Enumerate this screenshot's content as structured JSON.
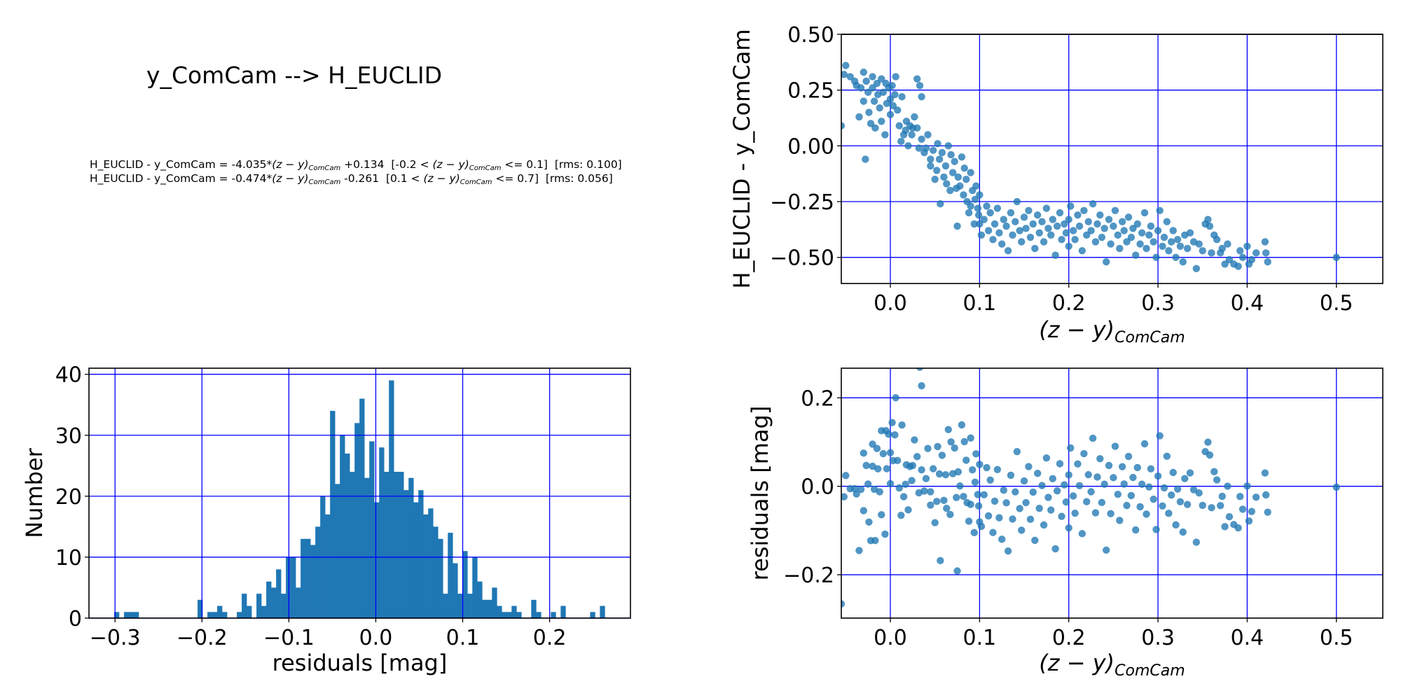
{
  "header": {
    "title": "y_ComCam --> H_EUCLID",
    "formulas": [
      [
        {
          "t": "H_EUCLID - y_ComCam = -4.035*"
        },
        {
          "t": "(z − y)",
          "i": true
        },
        {
          "t": "ComCam",
          "sub": true
        },
        {
          "t": " +0.134  [-0.2 < "
        },
        {
          "t": "(z − y)",
          "i": true
        },
        {
          "t": "ComCam",
          "sub": true
        },
        {
          "t": " <= 0.1]  [rms: 0.100]"
        }
      ],
      [
        {
          "t": "H_EUCLID - y_ComCam = -0.474*"
        },
        {
          "t": "(z − y)",
          "i": true
        },
        {
          "t": "ComCam",
          "sub": true
        },
        {
          "t": " -0.261  [0.1 < "
        },
        {
          "t": "(z − y)",
          "i": true
        },
        {
          "t": "ComCam",
          "sub": true
        },
        {
          "t": " <= 0.7]  [rms: 0.056]"
        }
      ]
    ]
  },
  "colors": {
    "points": "#1f77b4",
    "bars": "#1f77b4",
    "grid": "#0000ff",
    "axes": "#000000"
  },
  "chart_data": [
    {
      "id": "color-term",
      "type": "scatter",
      "xlabel": {
        "main": "(z − y)",
        "sub": "ComCam"
      },
      "ylabel": "H_EUCLID - y_ComCam",
      "xlim": [
        -0.055,
        0.552
      ],
      "ylim": [
        -0.617,
        0.5
      ],
      "xticks": [
        0.0,
        0.1,
        0.2,
        0.3,
        0.4,
        0.5
      ],
      "xticklabels": [
        "0.0",
        "0.1",
        "0.2",
        "0.3",
        "0.4",
        "0.5"
      ],
      "yticks": [
        -0.5,
        -0.25,
        0.0,
        0.25,
        0.5
      ],
      "yticklabels": [
        "−0.50",
        "−0.25",
        "0.00",
        "0.25",
        "0.50"
      ],
      "grid": true,
      "points": [
        [
          -0.055,
          0.09
        ],
        [
          -0.05,
          0.36
        ],
        [
          -0.052,
          0.32
        ],
        [
          -0.045,
          0.31
        ],
        [
          -0.04,
          0.29
        ],
        [
          -0.038,
          0.27
        ],
        [
          -0.035,
          0.13
        ],
        [
          -0.033,
          0.26
        ],
        [
          -0.03,
          0.33
        ],
        [
          -0.03,
          0.2
        ],
        [
          -0.028,
          -0.06
        ],
        [
          -0.027,
          0.29
        ],
        [
          -0.025,
          0.24
        ],
        [
          -0.024,
          0.15
        ],
        [
          -0.022,
          0.1
        ],
        [
          -0.02,
          0.31
        ],
        [
          -0.02,
          0.26
        ],
        [
          -0.018,
          0.2
        ],
        [
          -0.017,
          0.08
        ],
        [
          -0.015,
          0.28
        ],
        [
          -0.014,
          0.23
        ],
        [
          -0.012,
          0.17
        ],
        [
          -0.01,
          0.3
        ],
        [
          -0.01,
          0.11
        ],
        [
          -0.008,
          0.24
        ],
        [
          -0.006,
          0.05
        ],
        [
          -0.005,
          0.28
        ],
        [
          -0.004,
          0.19
        ],
        [
          -0.002,
          0.26
        ],
        [
          0.0,
          0.21
        ],
        [
          0.0,
          0.14
        ],
        [
          0.002,
          0.27
        ],
        [
          0.003,
          0.18
        ],
        [
          0.005,
          0.23
        ],
        [
          0.006,
          0.31
        ],
        [
          0.008,
          0.16
        ],
        [
          0.01,
          0.09
        ],
        [
          0.012,
          0.02
        ],
        [
          0.013,
          0.22
        ],
        [
          0.015,
          0.05
        ],
        [
          0.017,
          0.07
        ],
        [
          0.018,
          0.11
        ],
        [
          0.02,
          0.0
        ],
        [
          0.022,
          0.09
        ],
        [
          0.024,
          0.05
        ],
        [
          0.025,
          0.08
        ],
        [
          0.027,
          0.13
        ],
        [
          0.03,
          0.3
        ],
        [
          0.03,
          0.08
        ],
        [
          0.032,
          -0.01
        ],
        [
          0.033,
          0.27
        ],
        [
          0.035,
          0.03
        ],
        [
          0.035,
          0.22
        ],
        [
          0.038,
          -0.03
        ],
        [
          0.04,
          -0.01
        ],
        [
          0.042,
          0.05
        ],
        [
          0.045,
          -0.09
        ],
        [
          0.045,
          -0.06
        ],
        [
          0.048,
          -0.02
        ],
        [
          0.05,
          -0.15
        ],
        [
          0.052,
          -0.11
        ],
        [
          0.053,
          0.01
        ],
        [
          0.055,
          -0.06
        ],
        [
          0.056,
          -0.26
        ],
        [
          0.058,
          -0.03
        ],
        [
          0.06,
          -0.14
        ],
        [
          0.062,
          -0.09
        ],
        [
          0.063,
          -0.17
        ],
        [
          0.065,
          0.0
        ],
        [
          0.067,
          -0.2
        ],
        [
          0.068,
          -0.04
        ],
        [
          0.07,
          -0.12
        ],
        [
          0.072,
          -0.07
        ],
        [
          0.074,
          -0.19
        ],
        [
          0.075,
          -0.36
        ],
        [
          0.076,
          -0.14
        ],
        [
          0.078,
          -0.18
        ],
        [
          0.08,
          -0.05
        ],
        [
          0.082,
          -0.22
        ],
        [
          0.083,
          -0.1
        ],
        [
          0.085,
          -0.15
        ],
        [
          0.086,
          -0.25
        ],
        [
          0.088,
          -0.3
        ],
        [
          0.09,
          -0.12
        ],
        [
          0.09,
          -0.27
        ],
        [
          0.092,
          -0.2
        ],
        [
          0.094,
          -0.35
        ],
        [
          0.095,
          -0.24
        ],
        [
          0.096,
          -0.18
        ],
        [
          0.098,
          -0.28
        ],
        [
          0.099,
          -0.31
        ],
        [
          0.1,
          -0.22
        ],
        [
          0.1,
          -0.35
        ],
        [
          0.102,
          -0.4
        ],
        [
          0.105,
          -0.33
        ],
        [
          0.108,
          -0.27
        ],
        [
          0.11,
          -0.38
        ],
        [
          0.112,
          -0.3
        ],
        [
          0.115,
          -0.42
        ],
        [
          0.117,
          -0.35
        ],
        [
          0.12,
          -0.28
        ],
        [
          0.122,
          -0.39
        ],
        [
          0.125,
          -0.44
        ],
        [
          0.127,
          -0.33
        ],
        [
          0.13,
          -0.36
        ],
        [
          0.132,
          -0.47
        ],
        [
          0.135,
          -0.3
        ],
        [
          0.137,
          -0.4
        ],
        [
          0.14,
          -0.34
        ],
        [
          0.142,
          -0.25
        ],
        [
          0.145,
          -0.38
        ],
        [
          0.147,
          -0.43
        ],
        [
          0.15,
          -0.32
        ],
        [
          0.152,
          -0.37
        ],
        [
          0.155,
          -0.29
        ],
        [
          0.157,
          -0.41
        ],
        [
          0.16,
          -0.35
        ],
        [
          0.162,
          -0.46
        ],
        [
          0.165,
          -0.31
        ],
        [
          0.167,
          -0.39
        ],
        [
          0.17,
          -0.34
        ],
        [
          0.172,
          -0.43
        ],
        [
          0.175,
          -0.28
        ],
        [
          0.177,
          -0.37
        ],
        [
          0.18,
          -0.4
        ],
        [
          0.182,
          -0.33
        ],
        [
          0.185,
          -0.49
        ],
        [
          0.187,
          -0.36
        ],
        [
          0.19,
          -0.3
        ],
        [
          0.192,
          -0.42
        ],
        [
          0.195,
          -0.35
        ],
        [
          0.197,
          -0.39
        ],
        [
          0.2,
          -0.33
        ],
        [
          0.2,
          -0.45
        ],
        [
          0.202,
          -0.27
        ],
        [
          0.205,
          -0.38
        ],
        [
          0.207,
          -0.42
        ],
        [
          0.21,
          -0.31
        ],
        [
          0.212,
          -0.36
        ],
        [
          0.215,
          -0.47
        ],
        [
          0.217,
          -0.29
        ],
        [
          0.22,
          -0.4
        ],
        [
          0.222,
          -0.34
        ],
        [
          0.225,
          -0.38
        ],
        [
          0.227,
          -0.26
        ],
        [
          0.23,
          -0.43
        ],
        [
          0.232,
          -0.35
        ],
        [
          0.235,
          -0.31
        ],
        [
          0.237,
          -0.41
        ],
        [
          0.24,
          -0.37
        ],
        [
          0.242,
          -0.52
        ],
        [
          0.245,
          -0.33
        ],
        [
          0.247,
          -0.44
        ],
        [
          0.25,
          -0.36
        ],
        [
          0.252,
          -0.29
        ],
        [
          0.255,
          -0.4
        ],
        [
          0.257,
          -0.46
        ],
        [
          0.26,
          -0.34
        ],
        [
          0.262,
          -0.38
        ],
        [
          0.265,
          -0.43
        ],
        [
          0.267,
          -0.32
        ],
        [
          0.27,
          -0.41
        ],
        [
          0.272,
          -0.37
        ],
        [
          0.275,
          -0.49
        ],
        [
          0.277,
          -0.35
        ],
        [
          0.28,
          -0.44
        ],
        [
          0.282,
          -0.39
        ],
        [
          0.285,
          -0.3
        ],
        [
          0.287,
          -0.46
        ],
        [
          0.29,
          -0.4
        ],
        [
          0.292,
          -0.36
        ],
        [
          0.295,
          -0.43
        ],
        [
          0.298,
          -0.5
        ],
        [
          0.3,
          -0.38
        ],
        [
          0.302,
          -0.29
        ],
        [
          0.305,
          -0.45
        ],
        [
          0.307,
          -0.41
        ],
        [
          0.31,
          -0.34
        ],
        [
          0.312,
          -0.47
        ],
        [
          0.315,
          -0.43
        ],
        [
          0.317,
          -0.38
        ],
        [
          0.32,
          -0.5
        ],
        [
          0.322,
          -0.42
        ],
        [
          0.325,
          -0.45
        ],
        [
          0.328,
          -0.52
        ],
        [
          0.33,
          -0.4
        ],
        [
          0.333,
          -0.46
        ],
        [
          0.336,
          -0.39
        ],
        [
          0.34,
          -0.43
        ],
        [
          0.343,
          -0.55
        ],
        [
          0.346,
          -0.44
        ],
        [
          0.35,
          -0.47
        ],
        [
          0.353,
          -0.35
        ],
        [
          0.356,
          -0.33
        ],
        [
          0.358,
          -0.36
        ],
        [
          0.36,
          -0.48
        ],
        [
          0.363,
          -0.4
        ],
        [
          0.366,
          -0.42
        ],
        [
          0.37,
          -0.48
        ],
        [
          0.372,
          -0.46
        ],
        [
          0.375,
          -0.53
        ],
        [
          0.378,
          -0.44
        ],
        [
          0.38,
          -0.51
        ],
        [
          0.385,
          -0.53
        ],
        [
          0.39,
          -0.54
        ],
        [
          0.392,
          -0.47
        ],
        [
          0.395,
          -0.5
        ],
        [
          0.4,
          -0.45
        ],
        [
          0.402,
          -0.53
        ],
        [
          0.405,
          -0.51
        ],
        [
          0.41,
          -0.48
        ],
        [
          0.42,
          -0.43
        ],
        [
          0.421,
          -0.48
        ],
        [
          0.423,
          -0.52
        ],
        [
          0.5,
          -0.5
        ]
      ]
    },
    {
      "id": "residual-hist",
      "type": "bar",
      "xlabel": "residuals [mag]",
      "ylabel": "Number",
      "xlim": [
        -0.33,
        0.293
      ],
      "ylim": [
        0,
        41
      ],
      "bin_start": -0.301,
      "bin_width": 0.005645,
      "counts": [
        1,
        0,
        1,
        1,
        1,
        0,
        0,
        0,
        0,
        0,
        0,
        0,
        0,
        0,
        0,
        0,
        0,
        3,
        0,
        1,
        1,
        2,
        1,
        0,
        0,
        1,
        4,
        2,
        0,
        4,
        2,
        6,
        5,
        8,
        4,
        10,
        10,
        5,
        13,
        13,
        12,
        15,
        20,
        17,
        34,
        22,
        30,
        27,
        24,
        32,
        36,
        23,
        29,
        19,
        28,
        24,
        39,
        24,
        24,
        21,
        23,
        19,
        21,
        17,
        18,
        15,
        13,
        4,
        14,
        9,
        4,
        11,
        4,
        10,
        6,
        3,
        3,
        5,
        2,
        1,
        1,
        2,
        1,
        0,
        0,
        3,
        1,
        0,
        0,
        1,
        0,
        2,
        0,
        0,
        0,
        0,
        0,
        1,
        0,
        2
      ],
      "xticks": [
        -0.3,
        -0.2,
        -0.1,
        0.0,
        0.1,
        0.2
      ],
      "xticklabels": [
        "−0.3",
        "−0.2",
        "−0.1",
        "0.0",
        "0.1",
        "0.2"
      ],
      "yticks": [
        0,
        10,
        20,
        30,
        40
      ],
      "yticklabels": [
        "0",
        "10",
        "20",
        "30",
        "40"
      ],
      "grid": true
    },
    {
      "id": "residual-scatter",
      "type": "scatter",
      "xlabel": {
        "main": "(z − y)",
        "sub": "ComCam"
      },
      "ylabel": "residuals [mag]",
      "xlim": [
        -0.055,
        0.552
      ],
      "ylim": [
        -0.298,
        0.267
      ],
      "xticks": [
        0.0,
        0.1,
        0.2,
        0.3,
        0.4,
        0.5
      ],
      "xticklabels": [
        "0.0",
        "0.1",
        "0.2",
        "0.3",
        "0.4",
        "0.5"
      ],
      "yticks": [
        -0.2,
        0.0,
        0.2
      ],
      "yticklabels": [
        "−0.2",
        "0.0",
        "0.2"
      ],
      "grid": true,
      "residual_of": "color-term",
      "model": [
        {
          "max": 0.1,
          "slope": -4.035,
          "intercept": 0.134
        },
        {
          "max": 0.7,
          "slope": -0.474,
          "intercept": -0.261
        }
      ]
    }
  ]
}
